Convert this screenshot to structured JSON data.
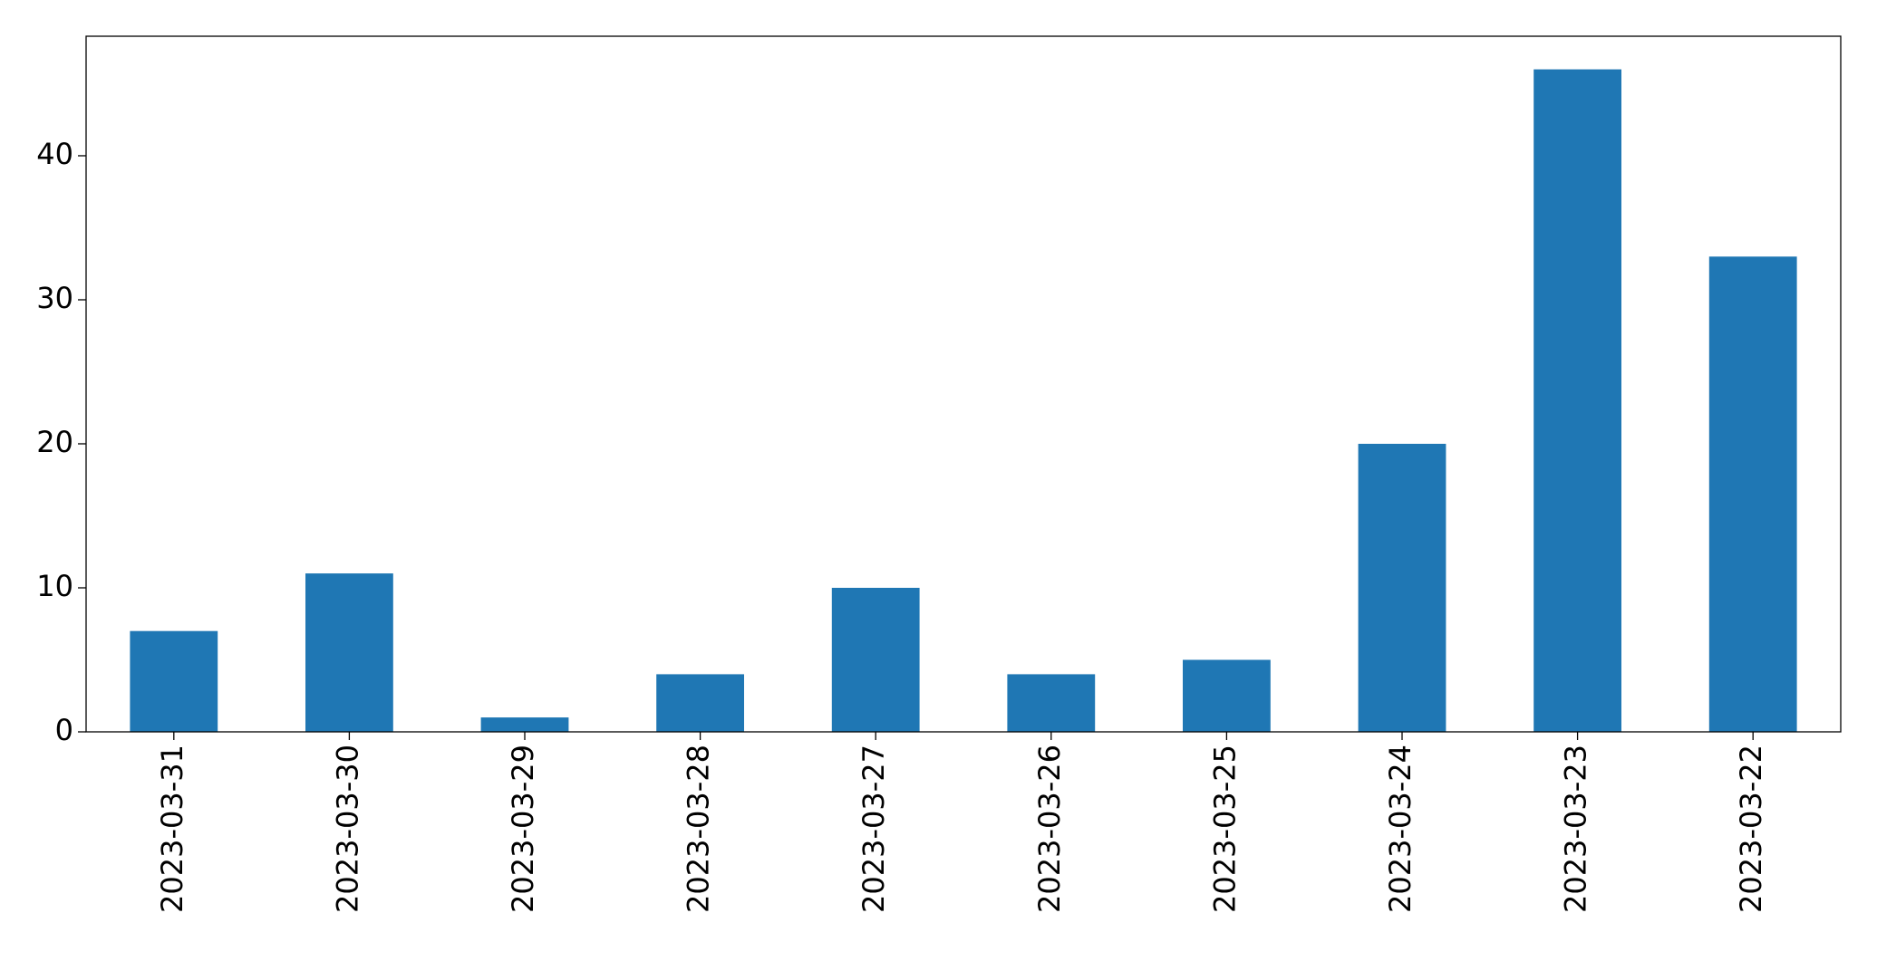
{
  "chart_data": {
    "type": "bar",
    "categories": [
      "2023-03-31",
      "2023-03-30",
      "2023-03-29",
      "2023-03-28",
      "2023-03-27",
      "2023-03-26",
      "2023-03-25",
      "2023-03-24",
      "2023-03-23",
      "2023-03-22"
    ],
    "values": [
      7,
      11,
      1,
      4,
      10,
      4,
      5,
      20,
      46,
      33
    ],
    "color": "#1f77b4",
    "ylim": [
      0,
      48.3
    ],
    "yticks": [
      0,
      10,
      20,
      30,
      40
    ],
    "grid": false
  }
}
